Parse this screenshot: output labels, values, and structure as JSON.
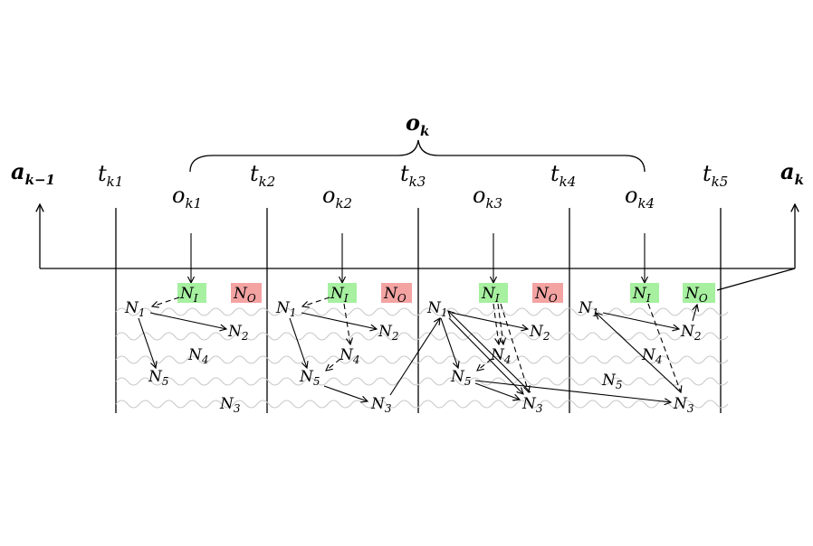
{
  "labels": {
    "ak_prev": {
      "base": "a",
      "sub": "k−1"
    },
    "ak": {
      "base": "a",
      "sub": "k"
    },
    "ok": {
      "base": "o",
      "sub": "k"
    },
    "times": [
      {
        "base": "t",
        "sub": "k1"
      },
      {
        "base": "t",
        "sub": "k2"
      },
      {
        "base": "t",
        "sub": "k3"
      },
      {
        "base": "t",
        "sub": "k4"
      },
      {
        "base": "t",
        "sub": "k5"
      }
    ],
    "observations": [
      {
        "base": "o",
        "sub": "k1"
      },
      {
        "base": "o",
        "sub": "k2"
      },
      {
        "base": "o",
        "sub": "k3"
      },
      {
        "base": "o",
        "sub": "k4"
      }
    ]
  },
  "nodes": {
    "input": {
      "base": "N",
      "sub": "I"
    },
    "output": {
      "base": "N",
      "sub": "O"
    },
    "n1": {
      "base": "N",
      "sub": "1"
    },
    "n2": {
      "base": "N",
      "sub": "2"
    },
    "n3": {
      "base": "N",
      "sub": "3"
    },
    "n4": {
      "base": "N",
      "sub": "4"
    },
    "n5": {
      "base": "N",
      "sub": "5"
    }
  },
  "colors": {
    "input_box": "#a6f0a0",
    "output_box": "#f4a3a3",
    "oscillation": "#c8c8c8"
  }
}
